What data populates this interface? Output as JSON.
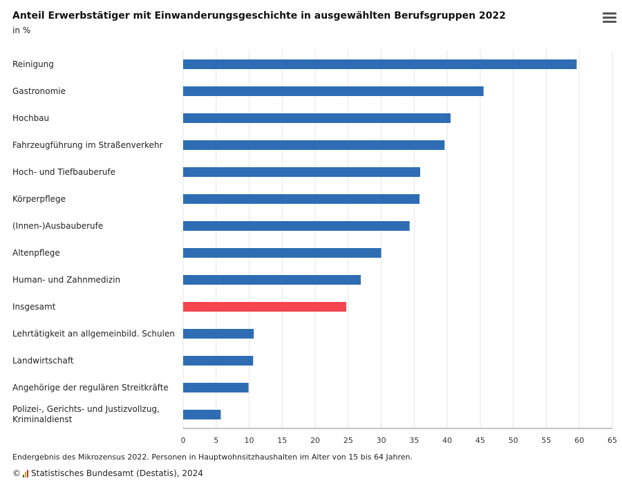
{
  "header": {
    "title": "Anteil Erwerbstätiger mit Einwanderungsgeschichte in ausgewählten Berufsgruppen 2022",
    "subtitle": "in %"
  },
  "footer": {
    "note": "Endergebnis des Mikrozensus 2022. Personen in Hauptwohnsitzhaushalten im Alter von 15 bis 64 Jahren.",
    "copyright_symbol": "©",
    "credit": "Statistisches Bundesamt (Destatis), 2024"
  },
  "colors": {
    "bar": "#2e6db4",
    "highlight": "#f5454e",
    "grid": "#e6e6e6"
  },
  "chart_data": {
    "type": "bar",
    "orientation": "horizontal",
    "title": "Anteil Erwerbstätiger mit Einwanderungsgeschichte in ausgewählten Berufsgruppen 2022",
    "subtitle": "in %",
    "categories": [
      "Reinigung",
      "Gastronomie",
      "Hochbau",
      "Fahrzeugführung im Straßenverkehr",
      "Hoch- und Tiefbauberufe",
      "Körperpflege",
      "(Innen-)Ausbauberufe",
      "Altenpflege",
      "Human- und Zahnmedizin",
      "Insgesamt",
      "Lehrtätigkeit an allgemeinbild. Schulen",
      "Landwirtschaft",
      "Angehörige der regulären Streitkräfte",
      "Polizei-, Gerichts- und Justizvollzug, Kriminaldienst"
    ],
    "values": [
      59.6,
      45.5,
      40.5,
      39.6,
      35.9,
      35.8,
      34.3,
      30.0,
      26.9,
      24.7,
      10.7,
      10.6,
      9.9,
      5.7
    ],
    "highlight_index": 9,
    "xlim": [
      0,
      65
    ],
    "xticks": [
      0,
      5,
      10,
      15,
      20,
      25,
      30,
      35,
      40,
      45,
      50,
      55,
      60,
      65
    ],
    "grid": true,
    "legend": "none"
  }
}
